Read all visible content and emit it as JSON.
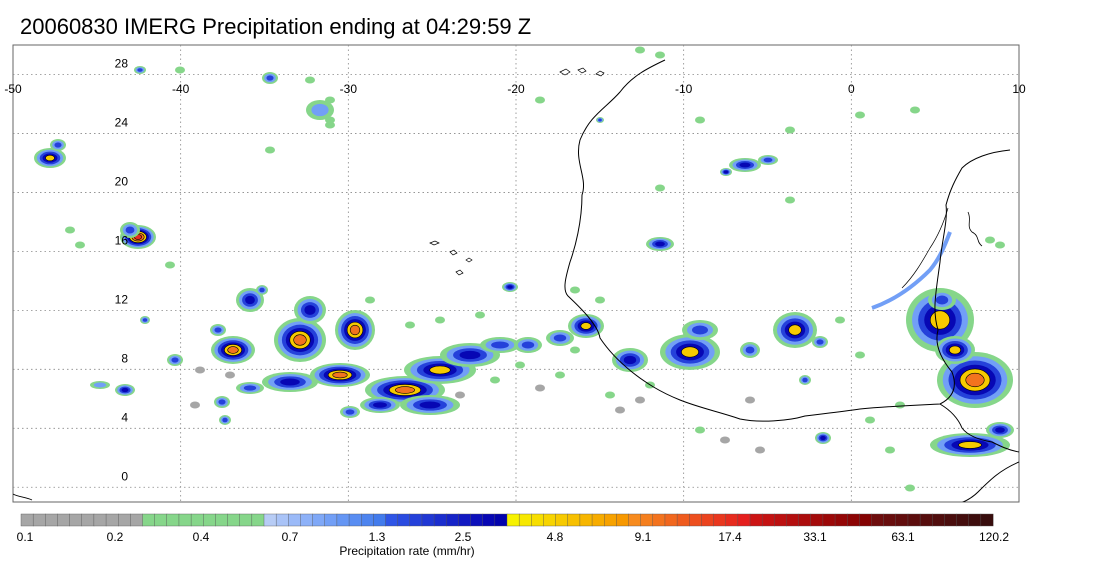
{
  "title": "20060830 IMERG Precipitation ending at 04:29:59 Z",
  "map": {
    "lon_range": [
      -50,
      10
    ],
    "lat_range": [
      -1,
      30
    ],
    "lon_ticks": [
      "-50",
      "-40",
      "-30",
      "-20",
      "-10",
      "0",
      "10"
    ],
    "lat_ticks": [
      "28",
      "24",
      "20",
      "16",
      "12",
      "8",
      "4",
      "0"
    ],
    "grid": "dotted"
  },
  "colorbar": {
    "title": "Precipitation rate (mm/hr)",
    "labels": [
      "0.1",
      "0.2",
      "0.4",
      "0.7",
      "1.3",
      "2.5",
      "4.8",
      "9.1",
      "17.4",
      "33.1",
      "63.1",
      "120.2"
    ],
    "colors": [
      "#a6a6a6",
      "#a6a6a6",
      "#a6a6a6",
      "#a6a6a6",
      "#a6a6a6",
      "#a6a6a6",
      "#a6a6a6",
      "#a6a6a6",
      "#a6a6a6",
      "#a6a6a6",
      "#86d68a",
      "#86d68a",
      "#86d68a",
      "#86d68a",
      "#86d68a",
      "#86d68a",
      "#86d68a",
      "#86d68a",
      "#86d68a",
      "#86d68a",
      "#b7ccf5",
      "#a9c3f7",
      "#9bbaf8",
      "#8db1f8",
      "#7fa8f7",
      "#729ff6",
      "#6596f4",
      "#598df2",
      "#4d84ef",
      "#427bec",
      "#2f55e6",
      "#2a4be0",
      "#2541da",
      "#2037d4",
      "#1b2dce",
      "#1623c8",
      "#1119c2",
      "#0c10bb",
      "#0707b4",
      "#0303ad",
      "#f7f200",
      "#f7e800",
      "#f7de00",
      "#f7d400",
      "#f7ca00",
      "#f7c000",
      "#f7b600",
      "#f7ac00",
      "#f7a200",
      "#f79800",
      "#f78b1e",
      "#f57f1e",
      "#f3731e",
      "#f1671e",
      "#ef5b1e",
      "#ed4f1e",
      "#eb431e",
      "#e9371e",
      "#e72b1e",
      "#e51f1e",
      "#cc1414",
      "#c41212",
      "#bc1010",
      "#b40e0e",
      "#ac0c0c",
      "#a40a0a",
      "#9c0808",
      "#940606",
      "#8c0404",
      "#840202",
      "#6e0d0d",
      "#680d0d",
      "#620d0d",
      "#5c0d0d",
      "#560d0d",
      "#500d0d",
      "#4a0d0d",
      "#440d0d",
      "#3e0d0d",
      "#380d0d"
    ]
  }
}
